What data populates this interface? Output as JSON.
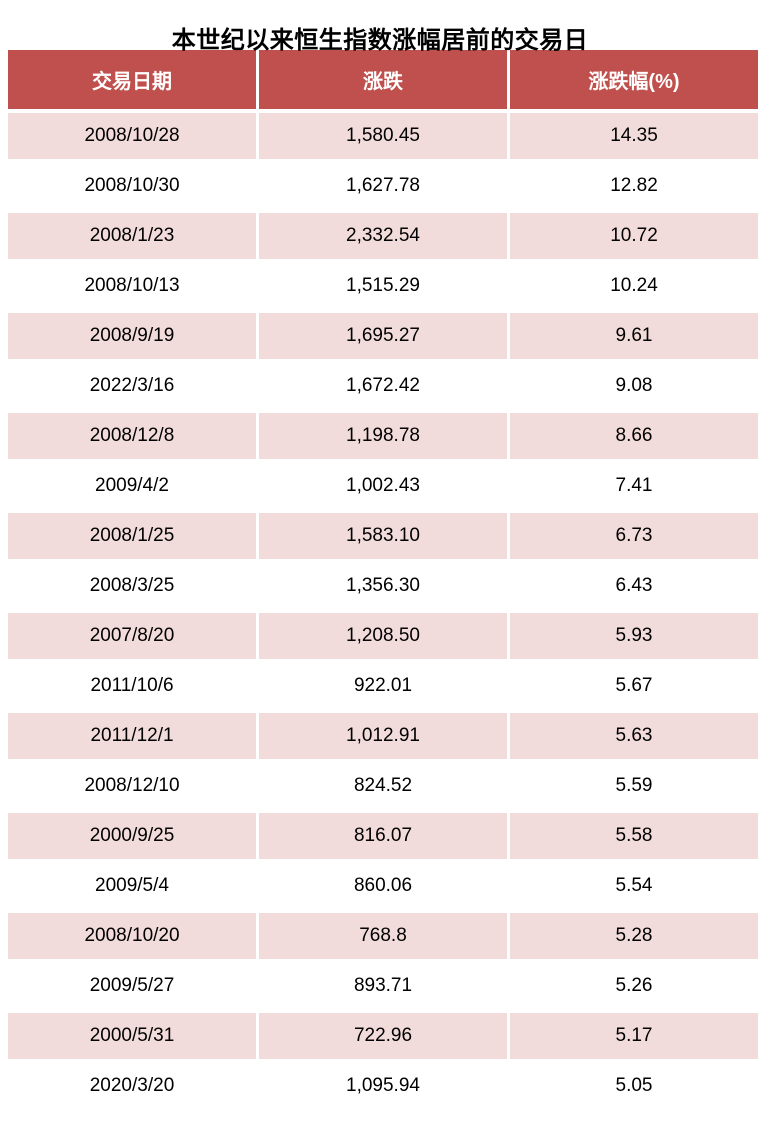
{
  "title": "本世纪以来恒生指数涨幅居前的交易日",
  "colors": {
    "header_bg": "#C0504D",
    "row_alt_bg": "#F2DCDB",
    "row_bg": "#FFFFFF",
    "header_text": "#FFFFFF",
    "cell_text": "#000000"
  },
  "table": {
    "headers": [
      "交易日期",
      "涨跌",
      "涨跌幅(%)"
    ],
    "rows": [
      [
        "2008/10/28",
        "1,580.45",
        "14.35"
      ],
      [
        "2008/10/30",
        "1,627.78",
        "12.82"
      ],
      [
        "2008/1/23",
        "2,332.54",
        "10.72"
      ],
      [
        "2008/10/13",
        "1,515.29",
        "10.24"
      ],
      [
        "2008/9/19",
        "1,695.27",
        "9.61"
      ],
      [
        "2022/3/16",
        "1,672.42",
        "9.08"
      ],
      [
        "2008/12/8",
        "1,198.78",
        "8.66"
      ],
      [
        "2009/4/2",
        "1,002.43",
        "7.41"
      ],
      [
        "2008/1/25",
        "1,583.10",
        "6.73"
      ],
      [
        "2008/3/25",
        "1,356.30",
        "6.43"
      ],
      [
        "2007/8/20",
        "1,208.50",
        "5.93"
      ],
      [
        "2011/10/6",
        "922.01",
        "5.67"
      ],
      [
        "2011/12/1",
        "1,012.91",
        "5.63"
      ],
      [
        "2008/12/10",
        "824.52",
        "5.59"
      ],
      [
        "2000/9/25",
        "816.07",
        "5.58"
      ],
      [
        "2009/5/4",
        "860.06",
        "5.54"
      ],
      [
        "2008/10/20",
        "768.8",
        "5.28"
      ],
      [
        "2009/5/27",
        "893.71",
        "5.26"
      ],
      [
        "2000/5/31",
        "722.96",
        "5.17"
      ],
      [
        "2020/3/20",
        "1,095.94",
        "5.05"
      ]
    ]
  },
  "chart_data": {
    "type": "table",
    "title": "本世纪以来恒生指数涨幅居前的交易日",
    "columns": [
      "交易日期",
      "涨跌",
      "涨跌幅(%)"
    ],
    "rows": [
      {
        "date": "2008/10/28",
        "change": 1580.45,
        "change_pct": 14.35
      },
      {
        "date": "2008/10/30",
        "change": 1627.78,
        "change_pct": 12.82
      },
      {
        "date": "2008/1/23",
        "change": 2332.54,
        "change_pct": 10.72
      },
      {
        "date": "2008/10/13",
        "change": 1515.29,
        "change_pct": 10.24
      },
      {
        "date": "2008/9/19",
        "change": 1695.27,
        "change_pct": 9.61
      },
      {
        "date": "2022/3/16",
        "change": 1672.42,
        "change_pct": 9.08
      },
      {
        "date": "2008/12/8",
        "change": 1198.78,
        "change_pct": 8.66
      },
      {
        "date": "2009/4/2",
        "change": 1002.43,
        "change_pct": 7.41
      },
      {
        "date": "2008/1/25",
        "change": 1583.1,
        "change_pct": 6.73
      },
      {
        "date": "2008/3/25",
        "change": 1356.3,
        "change_pct": 6.43
      },
      {
        "date": "2007/8/20",
        "change": 1208.5,
        "change_pct": 5.93
      },
      {
        "date": "2011/10/6",
        "change": 922.01,
        "change_pct": 5.67
      },
      {
        "date": "2011/12/1",
        "change": 1012.91,
        "change_pct": 5.63
      },
      {
        "date": "2008/12/10",
        "change": 824.52,
        "change_pct": 5.59
      },
      {
        "date": "2000/9/25",
        "change": 816.07,
        "change_pct": 5.58
      },
      {
        "date": "2009/5/4",
        "change": 860.06,
        "change_pct": 5.54
      },
      {
        "date": "2008/10/20",
        "change": 768.8,
        "change_pct": 5.28
      },
      {
        "date": "2009/5/27",
        "change": 893.71,
        "change_pct": 5.26
      },
      {
        "date": "2000/5/31",
        "change": 722.96,
        "change_pct": 5.17
      },
      {
        "date": "2020/3/20",
        "change": 1095.94,
        "change_pct": 5.05
      }
    ],
    "layout": {
      "striped": true,
      "stripe_color": "#F2DCDB",
      "header_color": "#C0504D"
    }
  }
}
